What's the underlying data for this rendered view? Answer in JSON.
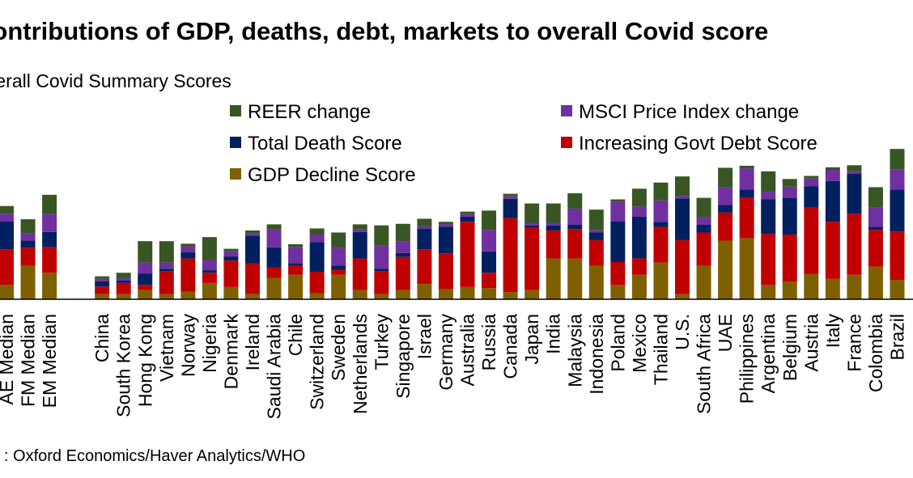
{
  "chart_data": {
    "type": "bar",
    "stacked": true,
    "title": "Contributions of GDP, deaths, debt, markets to overall Covid score",
    "subtitle": "Overall Covid Summary Scores",
    "source": "Source : Oxford Economics/Haver Analytics/WHO",
    "legend_position": "top",
    "ylim": [
      0,
      3
    ],
    "categories": [
      "AE Median",
      "FM Median",
      "EM Median",
      "China",
      "South Korea",
      "Hong Kong",
      "Vietnam",
      "Norway",
      "Nigeria",
      "Denmark",
      "Ireland",
      "Saudi Arabia",
      "Chile",
      "Switzerland",
      "Sweden",
      "Netherlands",
      "Turkey",
      "Singapore",
      "Israel",
      "Germany",
      "Australia",
      "Russia",
      "Canada",
      "Japan",
      "India",
      "Malaysia",
      "Indonesia",
      "Poland",
      "Mexico",
      "Thailand",
      "U.S.",
      "South Africa",
      "UAE",
      "Philippines",
      "Argentina",
      "Belgium",
      "Austria",
      "Italy",
      "France",
      "Colombia",
      "Brazil"
    ],
    "gap_after_index": 2,
    "series": [
      {
        "name": "GDP Decline Score",
        "color": "#7f6000",
        "values": [
          0.28,
          0.66,
          0.52,
          0.1,
          0.1,
          0.18,
          0.1,
          0.15,
          0.32,
          0.24,
          0.1,
          0.42,
          0.48,
          0.12,
          0.48,
          0.18,
          0.1,
          0.18,
          0.3,
          0.2,
          0.24,
          0.22,
          0.14,
          0.18,
          0.8,
          0.8,
          0.66,
          0.28,
          0.48,
          0.72,
          0.1,
          0.66,
          1.15,
          1.2,
          0.28,
          0.35,
          0.5,
          0.4,
          0.48,
          0.64,
          0.38
        ]
      },
      {
        "name": "Increasing Govt Debt Score",
        "color": "#c00000",
        "values": [
          0.7,
          0.35,
          0.5,
          0.15,
          0.22,
          0.1,
          0.45,
          0.65,
          0.2,
          0.52,
          0.6,
          0.2,
          0.18,
          0.42,
          0.1,
          0.62,
          0.45,
          0.65,
          0.68,
          0.7,
          1.28,
          0.3,
          1.45,
          1.22,
          0.55,
          0.58,
          0.5,
          0.45,
          0.32,
          0.7,
          1.06,
          0.65,
          0.55,
          0.8,
          1.0,
          0.92,
          1.3,
          1.12,
          1.2,
          0.72,
          0.95
        ]
      },
      {
        "name": "Total Death Score",
        "color": "#002060",
        "values": [
          0.55,
          0.14,
          0.3,
          0.1,
          0.05,
          0.22,
          0.05,
          0.12,
          0.05,
          0.08,
          0.55,
          0.4,
          0.05,
          0.58,
          0.08,
          0.52,
          0.05,
          0.08,
          0.4,
          0.52,
          0.1,
          0.42,
          0.38,
          0.05,
          0.1,
          0.08,
          0.15,
          0.8,
          0.82,
          0.1,
          0.82,
          0.15,
          0.15,
          0.15,
          0.68,
          0.72,
          0.42,
          0.8,
          0.78,
          0.06,
          0.82
        ]
      },
      {
        "name": "MSCI Price Index change",
        "color": "#7030a0",
        "values": [
          0.15,
          0.14,
          0.35,
          0.05,
          0.05,
          0.22,
          0.12,
          0.12,
          0.2,
          0.1,
          0.05,
          0.35,
          0.32,
          0.15,
          0.35,
          0.05,
          0.45,
          0.22,
          0.05,
          0.05,
          0.05,
          0.42,
          0.05,
          0.05,
          0.05,
          0.32,
          0.05,
          0.38,
          0.2,
          0.42,
          0.05,
          0.15,
          0.35,
          0.42,
          0.15,
          0.22,
          0.15,
          0.22,
          0.05,
          0.38,
          0.4
        ]
      },
      {
        "name": "REER change",
        "color": "#375623",
        "values": [
          0.15,
          0.28,
          0.38,
          0.05,
          0.1,
          0.42,
          0.42,
          0.05,
          0.45,
          0.05,
          0.05,
          0.1,
          0.05,
          0.12,
          0.3,
          0.1,
          0.4,
          0.35,
          0.15,
          0.05,
          0.05,
          0.38,
          0.05,
          0.38,
          0.38,
          0.3,
          0.4,
          0.05,
          0.35,
          0.35,
          0.38,
          0.38,
          0.38,
          0.05,
          0.4,
          0.15,
          0.05,
          0.05,
          0.12,
          0.4,
          0.4
        ]
      }
    ],
    "legend_layout": [
      [
        "REER change",
        "MSCI Price Index change"
      ],
      [
        "Total Death Score",
        "Increasing Govt Debt Score"
      ],
      [
        "GDP Decline Score"
      ]
    ]
  }
}
